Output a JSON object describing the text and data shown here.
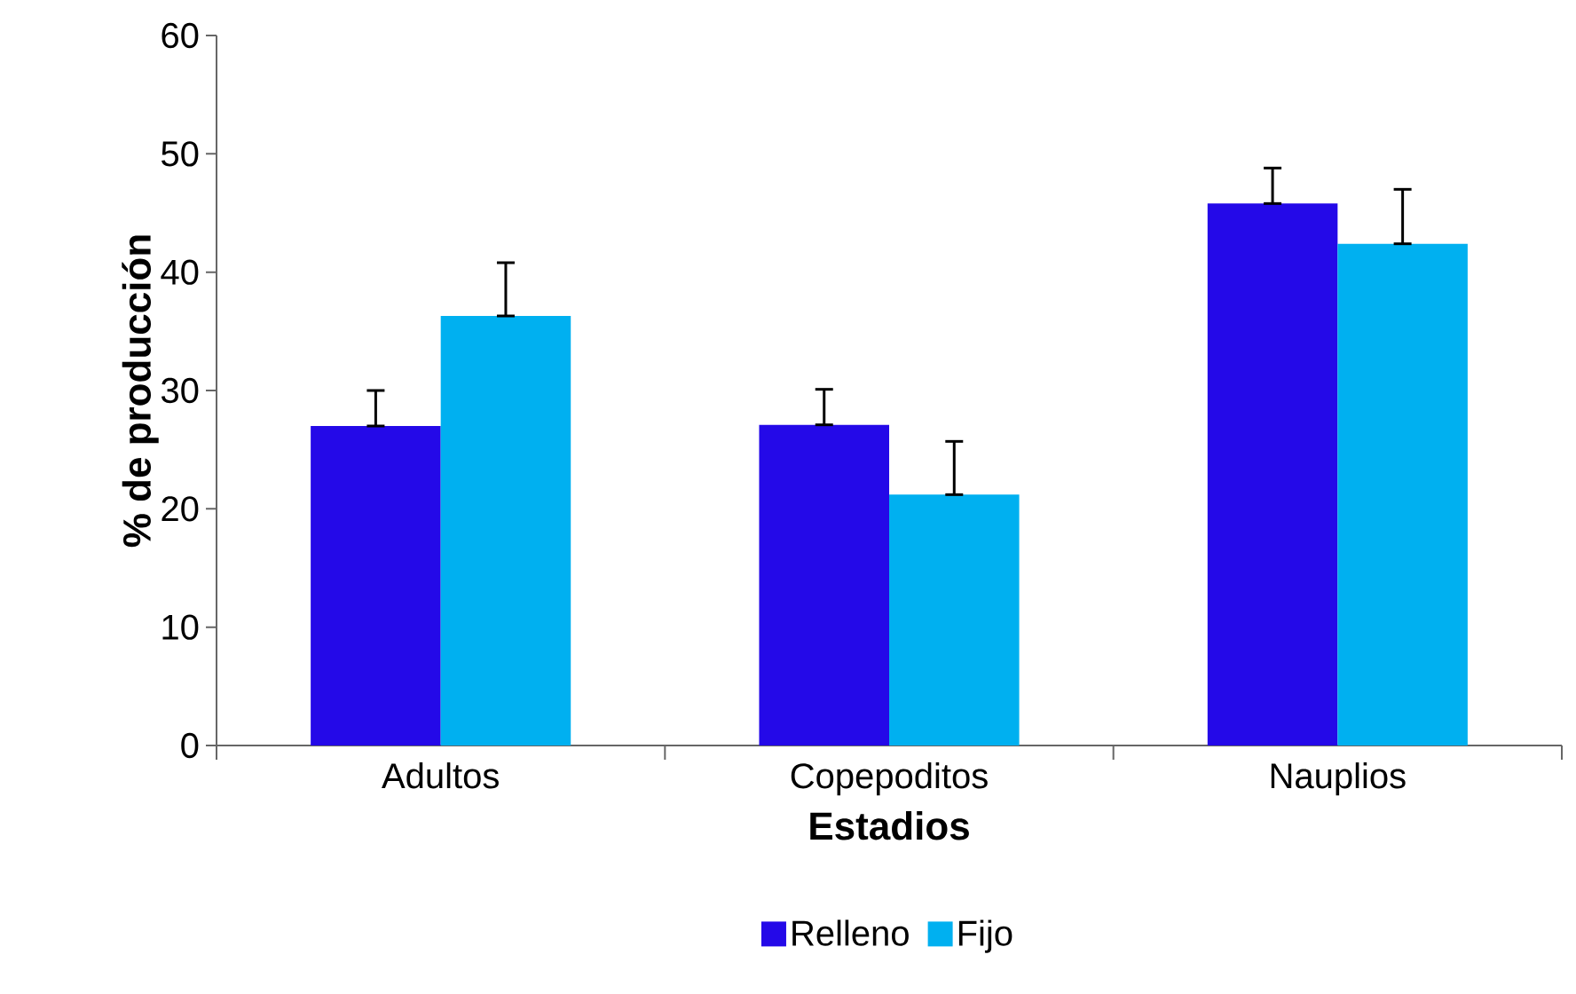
{
  "chart_data": {
    "type": "bar",
    "xlabel": "Estadios",
    "ylabel": "% de producción",
    "categories": [
      "Adultos",
      "Copepoditos",
      "Nauplios"
    ],
    "series": [
      {
        "name": "Relleno",
        "color": "#2409e8",
        "values": [
          27.0,
          27.1,
          45.8
        ],
        "errors": [
          [
            27.0,
            30.0
          ],
          [
            27.1,
            30.1
          ],
          [
            45.8,
            48.8
          ]
        ]
      },
      {
        "name": "Fijo",
        "color": "#00b0f0",
        "values": [
          36.3,
          21.2,
          42.4
        ],
        "errors": [
          [
            36.3,
            40.8
          ],
          [
            21.2,
            25.7
          ],
          [
            42.4,
            47.0
          ]
        ]
      }
    ],
    "ylim": [
      0,
      60
    ],
    "yticks": [
      0,
      10,
      20,
      30,
      40,
      50,
      60
    ],
    "grid": false,
    "legend": "bottom"
  }
}
